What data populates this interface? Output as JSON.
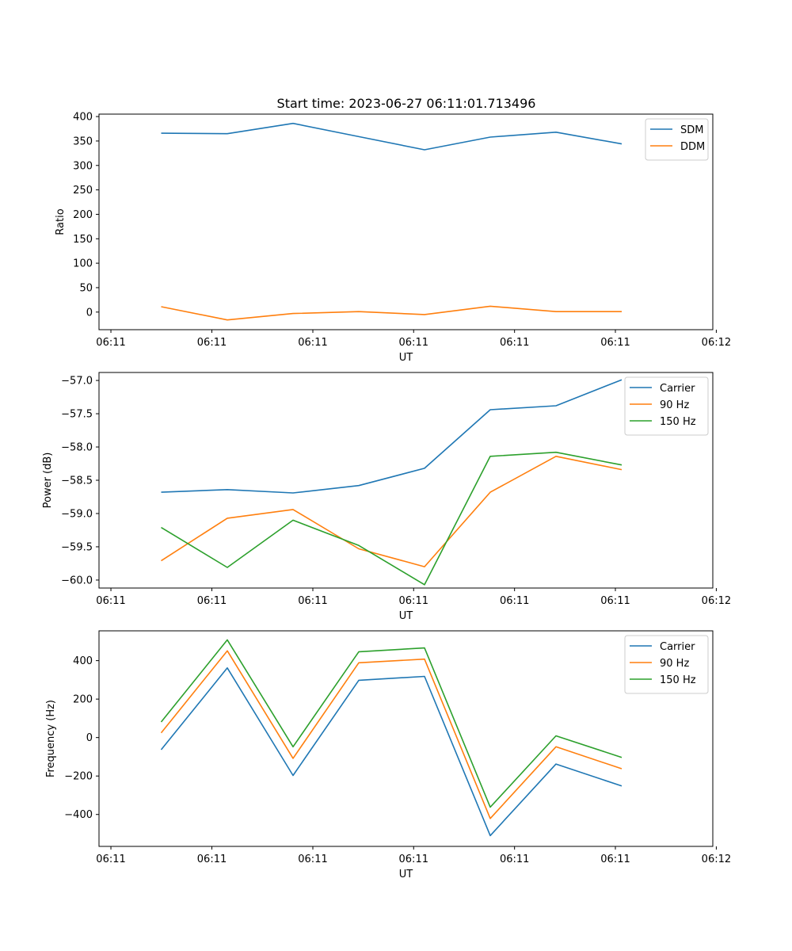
{
  "figure": {
    "title": "Start time: 2023-06-27 06:11:01.713496"
  },
  "chart_data": [
    {
      "type": "line",
      "title": "Start time: 2023-06-27 06:11:01.713496",
      "xlabel": "UT",
      "ylabel": "Ratio",
      "x_tick_labels": [
        "06:11",
        "06:11",
        "06:11",
        "06:11",
        "06:11",
        "06:11",
        "06:12"
      ],
      "y_ticks": [
        0,
        50,
        100,
        150,
        200,
        250,
        300,
        350,
        400
      ],
      "ylim": [
        -36,
        405
      ],
      "legend_position": "top-right",
      "series": [
        {
          "name": "SDM",
          "color": "#1f77b4",
          "values": [
            366,
            365,
            386,
            359,
            332,
            358,
            368,
            344
          ]
        },
        {
          "name": "DDM",
          "color": "#ff7f0e",
          "values": [
            11,
            -16,
            -3,
            1,
            -5,
            12,
            1,
            1
          ]
        }
      ]
    },
    {
      "type": "line",
      "title": "",
      "xlabel": "UT",
      "ylabel": "Power (dB)",
      "x_tick_labels": [
        "06:11",
        "06:11",
        "06:11",
        "06:11",
        "06:11",
        "06:11",
        "06:12"
      ],
      "y_ticks": [
        -60.0,
        -59.5,
        -59.0,
        -58.5,
        -58.0,
        -57.5,
        -57.0
      ],
      "y_tick_labels": [
        "−60.0",
        "−59.5",
        "−59.0",
        "−58.5",
        "−58.0",
        "−57.5",
        "−57.0"
      ],
      "ylim": [
        -60.12,
        -56.88
      ],
      "legend_position": "top-right",
      "series": [
        {
          "name": "Carrier",
          "color": "#1f77b4",
          "values": [
            -58.68,
            -58.64,
            -58.69,
            -58.58,
            -58.32,
            -57.44,
            -57.38,
            -56.99
          ]
        },
        {
          "name": "90 Hz",
          "color": "#ff7f0e",
          "values": [
            -59.71,
            -59.07,
            -58.94,
            -59.53,
            -59.8,
            -58.68,
            -58.14,
            -58.34
          ]
        },
        {
          "name": "150 Hz",
          "color": "#2ca02c",
          "values": [
            -59.21,
            -59.81,
            -59.1,
            -59.48,
            -60.07,
            -58.14,
            -58.08,
            -58.27
          ]
        }
      ]
    },
    {
      "type": "line",
      "title": "",
      "xlabel": "UT",
      "ylabel": "Frequency (Hz)",
      "x_tick_labels": [
        "06:11",
        "06:11",
        "06:11",
        "06:11",
        "06:11",
        "06:11",
        "06:12"
      ],
      "y_ticks": [
        -400,
        -200,
        0,
        200,
        400
      ],
      "y_tick_labels": [
        "−400",
        "−200",
        "0",
        "200",
        "400"
      ],
      "ylim": [
        -566,
        555
      ],
      "legend_position": "top-right",
      "series": [
        {
          "name": "Carrier",
          "color": "#1f77b4",
          "values": [
            -63,
            362,
            -197,
            298,
            318,
            -510,
            -138,
            -252
          ]
        },
        {
          "name": "90 Hz",
          "color": "#ff7f0e",
          "values": [
            24,
            451,
            -108,
            389,
            408,
            -421,
            -48,
            -162
          ]
        },
        {
          "name": "150 Hz",
          "color": "#2ca02c",
          "values": [
            81,
            508,
            -48,
            446,
            466,
            -362,
            9,
            -103
          ]
        }
      ]
    }
  ]
}
